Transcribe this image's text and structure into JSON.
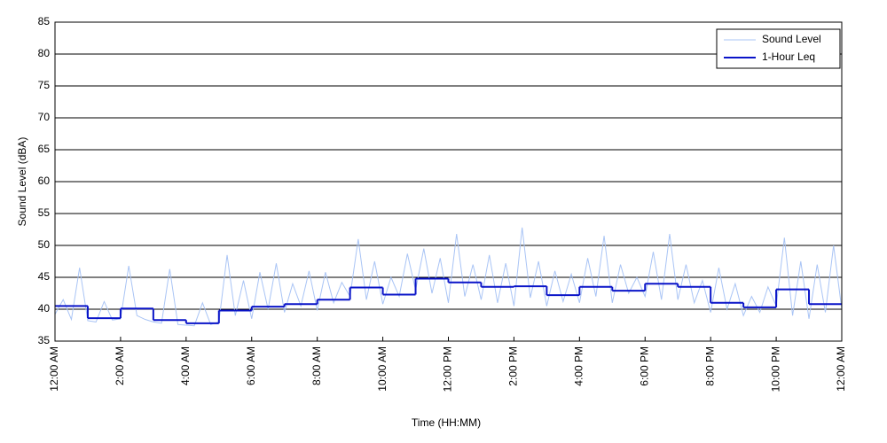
{
  "chart_data": {
    "type": "line",
    "xlabel": "Time (HH:MM)",
    "ylabel": "Sound Level (dBA)",
    "xlim": [
      0,
      24
    ],
    "ylim": [
      35,
      85
    ],
    "xticks": [
      {
        "value": 0,
        "label": "12:00 AM"
      },
      {
        "value": 2,
        "label": "2:00 AM"
      },
      {
        "value": 4,
        "label": "4:00 AM"
      },
      {
        "value": 6,
        "label": "6:00 AM"
      },
      {
        "value": 8,
        "label": "8:00 AM"
      },
      {
        "value": 10,
        "label": "10:00 AM"
      },
      {
        "value": 12,
        "label": "12:00 PM"
      },
      {
        "value": 14,
        "label": "2:00 PM"
      },
      {
        "value": 16,
        "label": "4:00 PM"
      },
      {
        "value": 18,
        "label": "6:00 PM"
      },
      {
        "value": 20,
        "label": "8:00 PM"
      },
      {
        "value": 22,
        "label": "10:00 PM"
      },
      {
        "value": 24,
        "label": "12:00 AM"
      }
    ],
    "yticks": [
      35,
      40,
      45,
      50,
      55,
      60,
      65,
      70,
      75,
      80,
      85
    ],
    "grid": true,
    "legend": "upper right",
    "series": [
      {
        "name": "Sound Level",
        "color": "#a9c4f5",
        "style": "line",
        "x": [
          0,
          0.25,
          0.5,
          0.75,
          1,
          1.25,
          1.5,
          1.75,
          2,
          2.25,
          2.5,
          2.75,
          3,
          3.25,
          3.5,
          3.75,
          4,
          4.25,
          4.5,
          4.75,
          5,
          5.25,
          5.5,
          5.75,
          6,
          6.25,
          6.5,
          6.75,
          7,
          7.25,
          7.5,
          7.75,
          8,
          8.25,
          8.5,
          8.75,
          9,
          9.25,
          9.5,
          9.75,
          10,
          10.25,
          10.5,
          10.75,
          11,
          11.25,
          11.5,
          11.75,
          12,
          12.25,
          12.5,
          12.75,
          13,
          13.25,
          13.5,
          13.75,
          14,
          14.25,
          14.5,
          14.75,
          15,
          15.25,
          15.5,
          15.75,
          16,
          16.25,
          16.5,
          16.75,
          17,
          17.25,
          17.5,
          17.75,
          18,
          18.25,
          18.5,
          18.75,
          19,
          19.25,
          19.5,
          19.75,
          20,
          20.25,
          20.5,
          20.75,
          21,
          21.25,
          21.5,
          21.75,
          22,
          22.25,
          22.5,
          22.75,
          23,
          23.25,
          23.5,
          23.75,
          24
        ],
        "values": [
          39.2,
          41.5,
          38.4,
          46.5,
          38.2,
          38.0,
          41.2,
          38.3,
          38.5,
          46.8,
          39.0,
          38.4,
          38.0,
          37.8,
          46.3,
          37.6,
          37.5,
          37.4,
          41.0,
          37.6,
          38.0,
          48.5,
          39.0,
          44.5,
          38.5,
          45.8,
          40.0,
          47.2,
          39.5,
          44.0,
          40.5,
          46.0,
          39.8,
          45.8,
          41.0,
          44.2,
          42.0,
          51.0,
          41.5,
          47.5,
          40.8,
          45.0,
          42.0,
          48.7,
          43.0,
          49.5,
          42.5,
          48.0,
          41.0,
          51.8,
          42.0,
          47.0,
          41.5,
          48.5,
          41.0,
          47.2,
          40.5,
          52.8,
          41.8,
          47.5,
          40.5,
          46.0,
          41.2,
          45.5,
          41.0,
          48.0,
          42.0,
          51.5,
          41.0,
          47.0,
          42.5,
          45.0,
          42.0,
          49.0,
          41.5,
          51.8,
          41.5,
          47.0,
          41.0,
          44.5,
          39.5,
          46.5,
          40.0,
          44.0,
          39.0,
          42.0,
          39.5,
          43.5,
          40.5,
          51.2,
          39.0,
          47.5,
          38.5,
          47.0,
          39.5,
          50.0,
          40.0
        ]
      },
      {
        "name": "1-Hour Leq",
        "color": "#0a14c8",
        "style": "step",
        "x": [
          0,
          1,
          2,
          3,
          4,
          5,
          6,
          7,
          8,
          9,
          10,
          11,
          12,
          13,
          14,
          15,
          16,
          17,
          18,
          19,
          20,
          21,
          22,
          23
        ],
        "values": [
          40.5,
          38.6,
          40.1,
          38.3,
          37.8,
          39.8,
          40.4,
          40.8,
          41.5,
          43.4,
          42.3,
          44.8,
          44.2,
          43.5,
          43.6,
          42.2,
          43.5,
          42.9,
          44.0,
          43.5,
          41.0,
          40.3,
          43.1,
          40.8
        ]
      }
    ]
  }
}
